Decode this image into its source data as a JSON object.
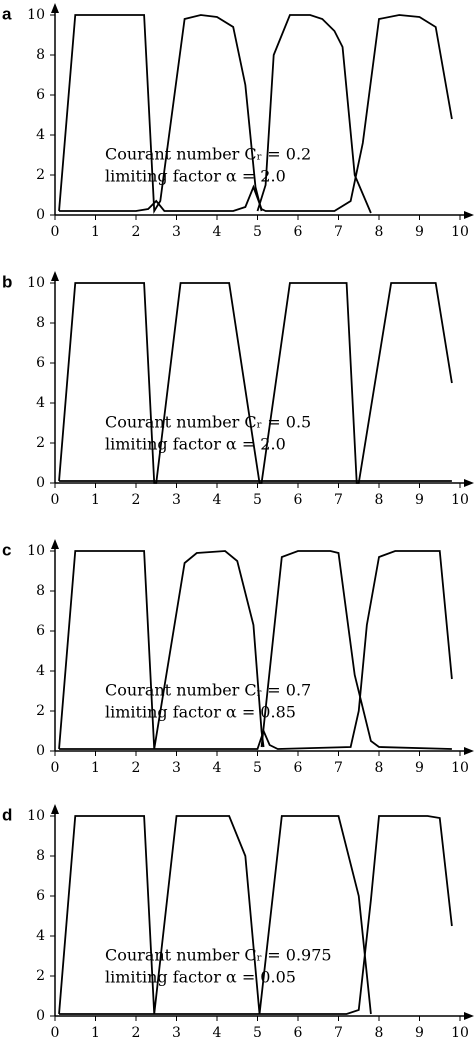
{
  "chart_data": [
    {
      "type": "line",
      "panel_label": "a",
      "annotations": [
        "Courant number Cᵣ = 0.2",
        "limiting factor α = 2.0"
      ],
      "xlim": [
        0,
        10
      ],
      "ylim": [
        0,
        10
      ],
      "xticks": [
        0,
        1,
        2,
        3,
        4,
        5,
        6,
        7,
        8,
        9,
        10
      ],
      "yticks": [
        0,
        2,
        4,
        6,
        8,
        10
      ],
      "series": [
        {
          "color": "#000000",
          "x": [
            0.1,
            0.5,
            2.2,
            2.45,
            2.6,
            3.2,
            3.6,
            4.0,
            4.4,
            4.7,
            4.95,
            5.1
          ],
          "values": [
            0.2,
            10,
            10,
            0.2,
            0.7,
            9.8,
            10,
            9.9,
            9.4,
            6.5,
            1.4,
            0.2
          ]
        },
        {
          "color": "#000000",
          "x": [
            5.0,
            5.2,
            5.4,
            5.8,
            6.3,
            6.6,
            6.9,
            7.1,
            7.4,
            7.8
          ],
          "values": [
            0.2,
            1.5,
            8,
            10,
            10,
            9.8,
            9.2,
            8.4,
            2,
            0.1
          ]
        },
        {
          "color": "#000000",
          "x": [
            0.1,
            2.0,
            2.3,
            2.5,
            2.7,
            4.4,
            4.7,
            4.9,
            5.1,
            5.2,
            6.9,
            7.3,
            7.6,
            8.0,
            8.5,
            9.0,
            9.4,
            9.8
          ],
          "values": [
            0.2,
            0.2,
            0.3,
            0.7,
            0.2,
            0.2,
            0.4,
            1.4,
            0.3,
            0.2,
            0.2,
            0.7,
            3.6,
            9.8,
            10,
            9.9,
            9.4,
            4.8
          ]
        }
      ]
    },
    {
      "type": "line",
      "panel_label": "b",
      "annotations": [
        "Courant number Cᵣ = 0.5",
        "limiting factor α = 2.0"
      ],
      "xlim": [
        0,
        10
      ],
      "ylim": [
        0,
        10
      ],
      "xticks": [
        0,
        1,
        2,
        3,
        4,
        5,
        6,
        7,
        8,
        9,
        10
      ],
      "yticks": [
        0,
        2,
        4,
        6,
        8,
        10
      ],
      "series": [
        {
          "color": "#000000",
          "x": [
            0.1,
            0.5,
            2.2,
            2.45,
            2.5,
            3.1,
            4.3,
            5.05,
            5.1,
            5.8,
            7.2,
            7.45,
            7.5,
            8.3,
            9.4,
            9.8
          ],
          "values": [
            0.1,
            10,
            10,
            0,
            0,
            10,
            10,
            0,
            0,
            10,
            10,
            0,
            0,
            10,
            10,
            5
          ]
        },
        {
          "color": "#000000",
          "x": [
            0.1,
            9.8
          ],
          "values": [
            0.1,
            0.1
          ]
        }
      ]
    },
    {
      "type": "line",
      "panel_label": "c",
      "annotations": [
        "Courant number Cᵣ = 0.7",
        "limiting factor α = 0.85"
      ],
      "xlim": [
        0,
        10
      ],
      "ylim": [
        0,
        10
      ],
      "xticks": [
        0,
        1,
        2,
        3,
        4,
        5,
        6,
        7,
        8,
        9,
        10
      ],
      "yticks": [
        0,
        2,
        4,
        6,
        8,
        10
      ],
      "series": [
        {
          "color": "#000000",
          "x": [
            0.1,
            0.5,
            2.2,
            2.45,
            3.2,
            3.5,
            4.2,
            4.5,
            4.9,
            5.1,
            5.15
          ],
          "values": [
            0.1,
            10,
            10,
            0.1,
            9.4,
            9.9,
            10,
            9.5,
            6.3,
            1,
            0.2
          ]
        },
        {
          "color": "#000000",
          "x": [
            5.1,
            5.6,
            6.0,
            6.8,
            7.0,
            7.4,
            7.8,
            8.0,
            9.8
          ],
          "values": [
            0.2,
            9.7,
            10,
            10,
            9.9,
            3.8,
            0.5,
            0.2,
            0.1
          ]
        },
        {
          "color": "#000000",
          "x": [
            0.1,
            5.0,
            5.15,
            5.3,
            5.5,
            7.3,
            7.5,
            7.7,
            8.0,
            8.4,
            9.5,
            9.8
          ],
          "values": [
            0.1,
            0.1,
            1,
            0.3,
            0.1,
            0.2,
            2,
            6.3,
            9.7,
            10,
            10,
            3.6
          ]
        }
      ]
    },
    {
      "type": "line",
      "panel_label": "d",
      "annotations": [
        "Courant number Cᵣ = 0.975",
        "limiting factor α = 0.05"
      ],
      "xlim": [
        0,
        10
      ],
      "ylim": [
        0,
        10
      ],
      "xticks": [
        0,
        1,
        2,
        3,
        4,
        5,
        6,
        7,
        8,
        9,
        10
      ],
      "yticks": [
        0,
        2,
        4,
        6,
        8,
        10
      ],
      "series": [
        {
          "color": "#000000",
          "x": [
            0.1,
            0.5,
            2.2,
            2.45,
            3.0,
            4.3,
            4.7,
            5.05,
            5.6,
            7.0,
            7.5,
            7.8
          ],
          "values": [
            0.1,
            10,
            10,
            0.1,
            10,
            10,
            8,
            0.1,
            10,
            10,
            6,
            0.1
          ]
        },
        {
          "color": "#000000",
          "x": [
            0.1,
            7.2,
            7.5,
            7.8,
            8.0,
            9.2,
            9.5,
            9.8
          ],
          "values": [
            0.1,
            0.1,
            0.3,
            5.8,
            10,
            10,
            9.9,
            4.5
          ]
        }
      ]
    }
  ]
}
